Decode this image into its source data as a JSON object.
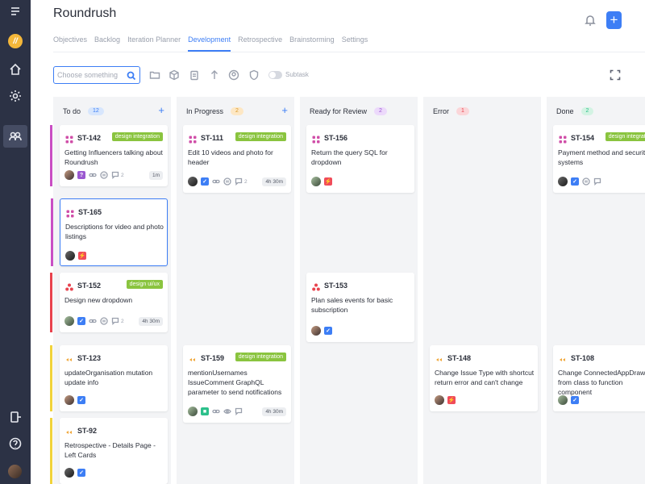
{
  "app": {
    "title": "Roundrush"
  },
  "sidebar": {
    "items": [
      {
        "name": "menu",
        "icon": "hamburger-icon"
      },
      {
        "name": "logo",
        "icon": "roundrush-logo-icon",
        "text": "//"
      },
      {
        "name": "home",
        "icon": "home-icon"
      },
      {
        "name": "settings",
        "icon": "gear-icon"
      },
      {
        "name": "team",
        "icon": "people-icon",
        "active": true
      },
      {
        "name": "logout",
        "icon": "exit-icon"
      },
      {
        "name": "help",
        "icon": "help-icon"
      },
      {
        "name": "profile",
        "icon": "avatar"
      }
    ]
  },
  "header": {
    "add_label": "+"
  },
  "tabs": [
    {
      "label": "Objectives",
      "active": false
    },
    {
      "label": "Backlog",
      "active": false
    },
    {
      "label": "Iteration Planner",
      "active": false
    },
    {
      "label": "Development",
      "active": true
    },
    {
      "label": "Retrospective",
      "active": false
    },
    {
      "label": "Brainstorming",
      "active": false
    },
    {
      "label": "Settings",
      "active": false
    }
  ],
  "toolbar": {
    "search_placeholder": "Choose something",
    "subtask_label": "Subtask",
    "subtask_on": false
  },
  "colors": {
    "accent": "#3d7ef5",
    "sidebar": "#2c3245",
    "tag_green": "#8ac43f"
  },
  "columns": [
    {
      "title": "To do",
      "count": "12",
      "count_bg": "#d7e6fd",
      "count_fg": "#3d7ef5",
      "addable": true,
      "cards": [
        {
          "id": "ST-142",
          "type": "story",
          "tag": "design integration",
          "title": "Getting Influencers talking about Roundrush",
          "assignee": "avatar",
          "status": "purple",
          "status_glyph": "?",
          "icons": [
            "link-icon",
            "pause-icon",
            "comment-icon"
          ],
          "comments": "2",
          "time": "1m",
          "accent": "#c94ec4"
        },
        {
          "id": "ST-165",
          "type": "story",
          "tag": "",
          "title": "Descriptions for video and photo listings",
          "assignee": "avatar",
          "status": "red",
          "status_glyph": "⚡",
          "icons": [],
          "comments": "",
          "time": "",
          "accent": "#c94ec4",
          "selected": true
        },
        {
          "id": "ST-152",
          "type": "bug",
          "tag": "design ui/ux",
          "title": "Design new dropdown",
          "assignee": "avatar",
          "status": "blue",
          "status_glyph": "✓",
          "icons": [
            "link-icon",
            "pause-icon",
            "comment-icon"
          ],
          "comments": "2",
          "time": "4h 30m",
          "accent": "#e8434e"
        },
        {
          "id": "ST-123",
          "type": "task",
          "tag": "",
          "title": "updateOrganisation mutation update info",
          "assignee": "avatar",
          "status": "blue",
          "status_glyph": "✓",
          "icons": [],
          "comments": "",
          "time": "",
          "accent": "#f1d33b"
        },
        {
          "id": "ST-92",
          "type": "task",
          "tag": "",
          "title": "Retrospective - Details Page - Left Cards",
          "assignee": "avatar",
          "status": "blue",
          "status_glyph": "✓",
          "icons": [],
          "comments": "",
          "time": "",
          "accent": "#f1d33b"
        }
      ]
    },
    {
      "title": "In Progress",
      "count": "2",
      "count_bg": "#fde7c4",
      "count_fg": "#d89a2b",
      "addable": true,
      "cards": [
        {
          "id": "ST-111",
          "type": "story",
          "tag": "design integration",
          "title": "Edit 10 videos and photo for header",
          "assignee": "avatar",
          "status": "blue",
          "status_glyph": "✓",
          "icons": [
            "link-icon",
            "pause-icon",
            "comment-icon"
          ],
          "comments": "2",
          "time": "4h 30m"
        },
        {
          "id": "ST-159",
          "type": "task",
          "tag": "design integration",
          "title": "mentionUsernames IssueComment GraphQL parameter to send notifications",
          "assignee": "avatar",
          "status": "green",
          "status_glyph": "■",
          "icons": [
            "link-icon",
            "eye-icon",
            "comment-icon"
          ],
          "comments": "",
          "time": "4h 30m"
        }
      ]
    },
    {
      "title": "Ready for Review",
      "count": "2",
      "count_bg": "#ecd9fb",
      "count_fg": "#9b59d0",
      "addable": false,
      "cards": [
        {
          "id": "ST-156",
          "type": "story",
          "tag": "",
          "title": "Return the query SQL for dropdown",
          "assignee": "avatar",
          "status": "red",
          "status_glyph": "⚡",
          "icons": [],
          "comments": "",
          "time": ""
        },
        {
          "id": "ST-153",
          "type": "bug",
          "tag": "",
          "title": "Plan sales events for basic subscription",
          "assignee": "avatar",
          "status": "blue",
          "status_glyph": "✓",
          "icons": [],
          "comments": "",
          "time": ""
        }
      ]
    },
    {
      "title": "Error",
      "count": "1",
      "count_bg": "#fbd6d9",
      "count_fg": "#e8434e",
      "addable": false,
      "cards": [
        {
          "id": "ST-148",
          "type": "task",
          "tag": "",
          "title": "Change Issue Type with shortcut return error and can't change",
          "assignee": "avatar",
          "status": "red",
          "status_glyph": "⚡",
          "icons": [],
          "comments": "",
          "time": ""
        }
      ]
    },
    {
      "title": "Done",
      "count": "2",
      "count_bg": "#d3f3e3",
      "count_fg": "#2cc08b",
      "addable": false,
      "cards": [
        {
          "id": "ST-154",
          "type": "story",
          "tag": "design integration",
          "title": "Payment method and security systems",
          "assignee": "avatar",
          "status": "blue",
          "status_glyph": "✓",
          "icons": [
            "pause-icon",
            "comment-icon"
          ],
          "comments": "",
          "time": ""
        },
        {
          "id": "ST-108",
          "type": "task",
          "tag": "",
          "title": "Change ConnectedAppDrawer from class to function component",
          "assignee": "avatar",
          "status": "blue",
          "status_glyph": "✓",
          "icons": [],
          "comments": "",
          "time": ""
        }
      ]
    }
  ]
}
